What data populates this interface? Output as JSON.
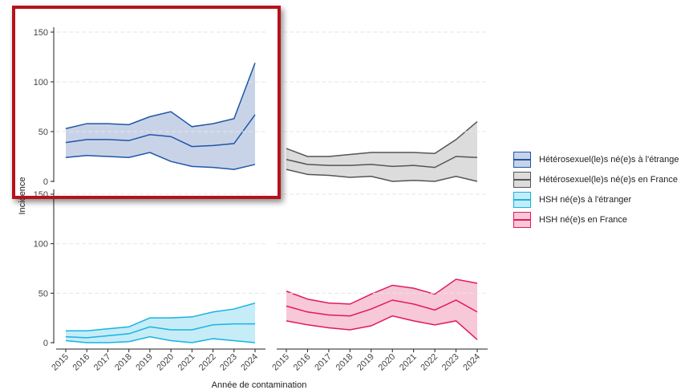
{
  "chart_data": {
    "type": "area",
    "xlabel": "Année de contamination",
    "ylabel": "Incidence",
    "ylim": [
      0,
      160
    ],
    "yticks": [
      0,
      50,
      100,
      150
    ],
    "x": [
      "2015",
      "2016",
      "2017",
      "2018",
      "2019",
      "2020",
      "2021",
      "2022",
      "2023",
      "2024"
    ],
    "grid": true,
    "legend_position": "right",
    "panels": [
      {
        "series": "Hétérosexuel(le)s né(e)s à l'étrange",
        "color": "#1e56a8",
        "fill": "#c9d3e8",
        "upper": [
          53,
          58,
          58,
          57,
          65,
          70,
          55,
          58,
          63,
          119
        ],
        "estimate": [
          39,
          42,
          42,
          41,
          47,
          45,
          35,
          36,
          38,
          67
        ],
        "lower": [
          24,
          26,
          25,
          24,
          29,
          20,
          15,
          14,
          12,
          17
        ]
      },
      {
        "series": "Hétérosexuel(le)s né(e)s en France",
        "color": "#555555",
        "fill": "#dcdcdc",
        "upper": [
          33,
          25,
          25,
          27,
          29,
          29,
          29,
          28,
          42,
          60
        ],
        "estimate": [
          22,
          17,
          16,
          16,
          17,
          15,
          16,
          14,
          25,
          24
        ],
        "lower": [
          12,
          7,
          6,
          4,
          5,
          0,
          1,
          0,
          5,
          0
        ]
      },
      {
        "series": "HSH né(e)s à l'étranger",
        "color": "#16b4e2",
        "fill": "#c6ecf8",
        "upper": [
          12,
          12,
          14,
          16,
          25,
          25,
          26,
          31,
          34,
          40
        ],
        "estimate": [
          6,
          5,
          7,
          9,
          16,
          13,
          13,
          18,
          19,
          19
        ],
        "lower": [
          2,
          0,
          0,
          1,
          6,
          2,
          0,
          4,
          2,
          0
        ]
      },
      {
        "series": "HSH né(e)s en France",
        "color": "#e3185e",
        "fill": "#f7c8d8",
        "upper": [
          52,
          44,
          40,
          39,
          49,
          58,
          55,
          49,
          64,
          60
        ],
        "estimate": [
          37,
          31,
          28,
          27,
          34,
          43,
          39,
          33,
          43,
          31
        ],
        "lower": [
          22,
          18,
          15,
          13,
          17,
          27,
          22,
          18,
          22,
          3
        ]
      }
    ]
  }
}
